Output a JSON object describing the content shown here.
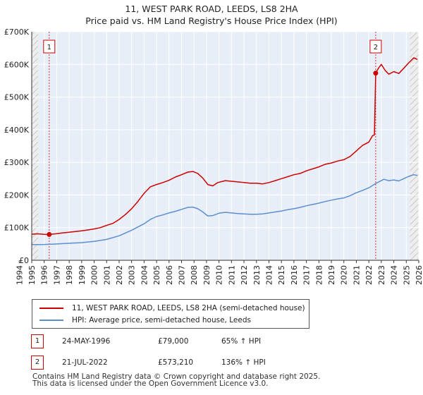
{
  "title_line1": "11, WEST PARK ROAD, LEEDS, LS8 2HA",
  "title_line2": "Price paid vs. HM Land Registry's House Price Index (HPI)",
  "chart_data": {
    "type": "line",
    "title": "11, WEST PARK ROAD, LEEDS, LS8 2HA — Price paid vs. HM Land Registry's House Price Index (HPI)",
    "xlim": [
      1995.0,
      2026.0
    ],
    "ylim": [
      0,
      700000
    ],
    "x_ticks": [
      1994,
      1995,
      1996,
      1997,
      1998,
      1999,
      2000,
      2001,
      2002,
      2003,
      2004,
      2005,
      2006,
      2007,
      2008,
      2009,
      2010,
      2011,
      2012,
      2013,
      2014,
      2015,
      2016,
      2017,
      2018,
      2019,
      2020,
      2021,
      2022,
      2023,
      2024,
      2025,
      2026
    ],
    "y_ticks": [
      0,
      100000,
      200000,
      300000,
      400000,
      500000,
      600000,
      700000
    ],
    "y_tick_labels": [
      "£0",
      "£100K",
      "£200K",
      "£300K",
      "£400K",
      "£500K",
      "£600K",
      "£700K"
    ],
    "grid": true,
    "series": [
      {
        "name": "11, WEST PARK ROAD, LEEDS, LS8 2HA (semi-detached house)",
        "color": "#cc0000",
        "points": [
          [
            1995.0,
            80000
          ],
          [
            1995.5,
            81000
          ],
          [
            1996.0,
            79500
          ],
          [
            1996.4,
            79000
          ],
          [
            1996.9,
            81000
          ],
          [
            1997.5,
            84000
          ],
          [
            1998.0,
            86000
          ],
          [
            1998.5,
            88000
          ],
          [
            1999.0,
            90000
          ],
          [
            1999.5,
            93000
          ],
          [
            2000.0,
            96000
          ],
          [
            2000.5,
            100000
          ],
          [
            2001.0,
            107000
          ],
          [
            2001.5,
            113000
          ],
          [
            2002.0,
            125000
          ],
          [
            2002.5,
            140000
          ],
          [
            2003.0,
            158000
          ],
          [
            2003.5,
            180000
          ],
          [
            2004.0,
            205000
          ],
          [
            2004.5,
            225000
          ],
          [
            2005.0,
            232000
          ],
          [
            2005.5,
            238000
          ],
          [
            2006.0,
            245000
          ],
          [
            2006.5,
            255000
          ],
          [
            2007.0,
            262000
          ],
          [
            2007.5,
            270000
          ],
          [
            2007.9,
            272000
          ],
          [
            2008.3,
            266000
          ],
          [
            2008.7,
            252000
          ],
          [
            2009.1,
            232000
          ],
          [
            2009.5,
            228000
          ],
          [
            2009.9,
            238000
          ],
          [
            2010.5,
            244000
          ],
          [
            2011.0,
            242000
          ],
          [
            2011.5,
            240000
          ],
          [
            2012.0,
            238000
          ],
          [
            2012.5,
            236000
          ],
          [
            2013.0,
            236000
          ],
          [
            2013.5,
            234000
          ],
          [
            2014.0,
            238000
          ],
          [
            2014.5,
            244000
          ],
          [
            2015.0,
            250000
          ],
          [
            2015.5,
            256000
          ],
          [
            2016.0,
            262000
          ],
          [
            2016.5,
            266000
          ],
          [
            2017.0,
            274000
          ],
          [
            2017.5,
            280000
          ],
          [
            2018.0,
            286000
          ],
          [
            2018.5,
            294000
          ],
          [
            2019.0,
            298000
          ],
          [
            2019.5,
            304000
          ],
          [
            2020.0,
            308000
          ],
          [
            2020.5,
            318000
          ],
          [
            2021.0,
            335000
          ],
          [
            2021.5,
            352000
          ],
          [
            2022.0,
            362000
          ],
          [
            2022.3,
            382000
          ],
          [
            2022.45,
            384000
          ],
          [
            2022.55,
            573210
          ],
          [
            2022.8,
            590000
          ],
          [
            2023.0,
            600000
          ],
          [
            2023.3,
            582000
          ],
          [
            2023.6,
            570000
          ],
          [
            2024.0,
            578000
          ],
          [
            2024.4,
            572000
          ],
          [
            2024.8,
            588000
          ],
          [
            2025.2,
            605000
          ],
          [
            2025.6,
            620000
          ],
          [
            2025.9,
            615000
          ]
        ]
      },
      {
        "name": "HPI: Average price, semi-detached house, Leeds",
        "color": "#5b8fd0",
        "points": [
          [
            1995.0,
            48000
          ],
          [
            1996.0,
            48500
          ],
          [
            1997.0,
            50000
          ],
          [
            1998.0,
            52000
          ],
          [
            1999.0,
            54000
          ],
          [
            2000.0,
            58000
          ],
          [
            2001.0,
            64000
          ],
          [
            2002.0,
            75000
          ],
          [
            2003.0,
            92000
          ],
          [
            2004.0,
            112000
          ],
          [
            2004.5,
            125000
          ],
          [
            2005.0,
            134000
          ],
          [
            2005.5,
            139000
          ],
          [
            2006.0,
            145000
          ],
          [
            2006.5,
            150000
          ],
          [
            2007.0,
            156000
          ],
          [
            2007.5,
            162000
          ],
          [
            2007.9,
            163000
          ],
          [
            2008.3,
            158000
          ],
          [
            2008.7,
            148000
          ],
          [
            2009.1,
            136000
          ],
          [
            2009.5,
            137000
          ],
          [
            2010.0,
            144000
          ],
          [
            2010.5,
            147000
          ],
          [
            2011.0,
            145000
          ],
          [
            2011.5,
            143000
          ],
          [
            2012.0,
            142000
          ],
          [
            2012.5,
            141000
          ],
          [
            2013.0,
            141000
          ],
          [
            2013.5,
            142000
          ],
          [
            2014.0,
            145000
          ],
          [
            2014.5,
            148000
          ],
          [
            2015.0,
            151000
          ],
          [
            2015.5,
            155000
          ],
          [
            2016.0,
            158000
          ],
          [
            2016.5,
            162000
          ],
          [
            2017.0,
            167000
          ],
          [
            2017.5,
            171000
          ],
          [
            2018.0,
            175000
          ],
          [
            2018.5,
            180000
          ],
          [
            2019.0,
            184000
          ],
          [
            2019.5,
            188000
          ],
          [
            2020.0,
            191000
          ],
          [
            2020.5,
            198000
          ],
          [
            2021.0,
            207000
          ],
          [
            2021.5,
            214000
          ],
          [
            2022.0,
            222000
          ],
          [
            2022.5,
            234000
          ],
          [
            2022.9,
            242000
          ],
          [
            2023.2,
            248000
          ],
          [
            2023.6,
            244000
          ],
          [
            2024.0,
            246000
          ],
          [
            2024.4,
            243000
          ],
          [
            2024.8,
            250000
          ],
          [
            2025.2,
            257000
          ],
          [
            2025.6,
            262000
          ],
          [
            2025.9,
            260000
          ]
        ]
      }
    ],
    "markers": [
      {
        "label": "1",
        "x": 1996.4,
        "y": 79000
      },
      {
        "label": "2",
        "x": 2022.55,
        "y": 573210
      }
    ],
    "hatched_regions": [
      [
        1995.0,
        1995.5
      ],
      [
        2025.3,
        2026.0
      ]
    ]
  },
  "legend": {
    "items": [
      {
        "label": "11, WEST PARK ROAD, LEEDS, LS8 2HA (semi-detached house)",
        "color": "#cc0000"
      },
      {
        "label": "HPI: Average price, semi-detached house, Leeds",
        "color": "#5b8fd0"
      }
    ]
  },
  "transactions": [
    {
      "id": "1",
      "date": "24-MAY-1996",
      "price": "£79,000",
      "hpi": "65% ↑ HPI"
    },
    {
      "id": "2",
      "date": "21-JUL-2022",
      "price": "£573,210",
      "hpi": "136% ↑ HPI"
    }
  ],
  "footer": {
    "line1": "Contains HM Land Registry data © Crown copyright and database right 2025.",
    "line2": "This data is licensed under the Open Government Licence v3.0."
  }
}
